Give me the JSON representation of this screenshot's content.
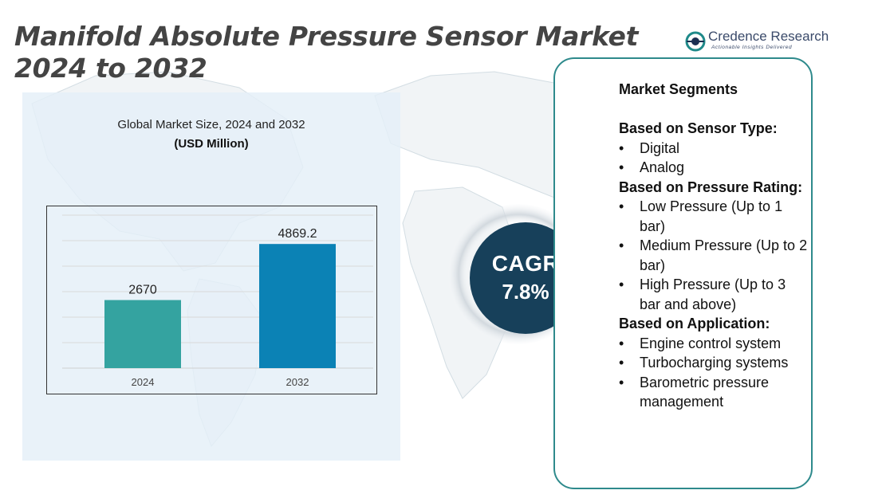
{
  "title": "Manifold Absolute Pressure Sensor Market 2024 to 2032",
  "logo": {
    "name": "Credence Research",
    "tagline": "Actionable Insights Delivered"
  },
  "chart_data": {
    "type": "bar",
    "title": "Global Market Size, 2024 and 2032",
    "subtitle": "(USD Million)",
    "categories": [
      "2024",
      "2032"
    ],
    "values": [
      2670,
      4869.2
    ],
    "value_labels": [
      "2670",
      "4869.2"
    ],
    "colors": [
      "#34a3a0",
      "#0b82b5"
    ],
    "ylim": [
      0,
      6000
    ],
    "grid": true,
    "xlabel": "",
    "ylabel": ""
  },
  "cagr": {
    "label": "CAGR",
    "value": "7.8%"
  },
  "segments": {
    "title": "Market Segments",
    "groups": [
      {
        "heading": "Based on Sensor Type:",
        "items": [
          "Digital",
          "Analog"
        ]
      },
      {
        "heading": "Based on Pressure Rating:",
        "items": [
          "Low Pressure (Up to 1 bar)",
          "Medium Pressure (Up to 2 bar)",
          "High Pressure (Up to 3 bar and above)"
        ]
      },
      {
        "heading": "Based on Application:",
        "items": [
          "Engine control system",
          "Turbocharging systems",
          "Barometric pressure management"
        ]
      }
    ]
  },
  "colors": {
    "accent": "#2e8a8c",
    "cagr_bg": "#17405a",
    "panel_bg": "#e4eff8"
  }
}
